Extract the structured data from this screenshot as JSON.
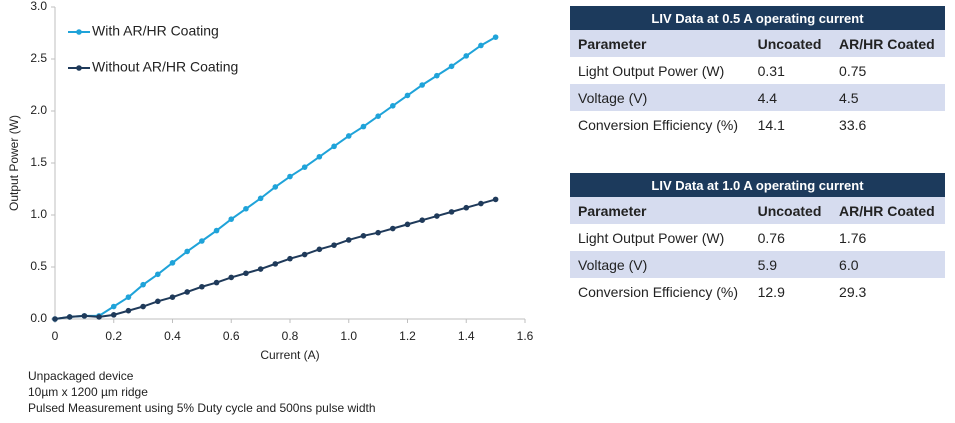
{
  "chart_data": {
    "type": "line",
    "x": [
      0,
      0.05,
      0.1,
      0.15,
      0.2,
      0.25,
      0.3,
      0.35,
      0.4,
      0.45,
      0.5,
      0.55,
      0.6,
      0.65,
      0.7,
      0.75,
      0.8,
      0.85,
      0.9,
      0.95,
      1.0,
      1.05,
      1.1,
      1.15,
      1.2,
      1.25,
      1.3,
      1.35,
      1.4,
      1.45,
      1.5
    ],
    "series": [
      {
        "name": "With AR/HR Coating",
        "color": "#1fa3d9",
        "values": [
          0,
          0.02,
          0.03,
          0.03,
          0.12,
          0.21,
          0.33,
          0.43,
          0.54,
          0.65,
          0.75,
          0.85,
          0.96,
          1.06,
          1.16,
          1.27,
          1.37,
          1.46,
          1.56,
          1.66,
          1.76,
          1.85,
          1.95,
          2.05,
          2.15,
          2.25,
          2.34,
          2.43,
          2.53,
          2.63,
          2.71
        ]
      },
      {
        "name": "Without AR/HR Coating",
        "color": "#1f3a5a",
        "values": [
          0,
          0.02,
          0.03,
          0.02,
          0.04,
          0.08,
          0.12,
          0.17,
          0.21,
          0.26,
          0.31,
          0.35,
          0.4,
          0.44,
          0.48,
          0.53,
          0.58,
          0.62,
          0.67,
          0.71,
          0.76,
          0.8,
          0.83,
          0.87,
          0.91,
          0.95,
          0.99,
          1.03,
          1.07,
          1.11,
          1.15
        ]
      }
    ],
    "x_label": "Current (A)",
    "y_label": "Output Power (W)",
    "xlim": [
      0,
      1.6
    ],
    "xticks": [
      0,
      0.2,
      0.4,
      0.6,
      0.8,
      {
        "value": 1,
        "label": "1.0"
      },
      1.2,
      1.4,
      1.6
    ],
    "ylim": [
      0,
      3
    ],
    "yticks": [
      {
        "value": 0,
        "label": "0.0"
      },
      0.5,
      {
        "value": 1,
        "label": "1.0"
      },
      1.5,
      {
        "value": 2,
        "label": "2.0"
      },
      2.5,
      {
        "value": 3,
        "label": "3.0"
      }
    ],
    "legend": "upper left"
  },
  "notes": [
    "Unpackaged device",
    "10µm x 1200 µm ridge",
    "Pulsed Measurement using 5% Duty cycle and 500ns pulse width"
  ],
  "tables": [
    {
      "title": "LIV Data at 0.5 A operating current",
      "header": [
        "Parameter",
        "Uncoated",
        "AR/HR Coated"
      ],
      "rows": [
        [
          "Light Output Power (W)",
          "0.31",
          "0.75"
        ],
        [
          "Voltage (V)",
          "4.4",
          "4.5"
        ],
        [
          "Conversion Efficiency (%)",
          "14.1",
          "33.6"
        ]
      ]
    },
    {
      "title": "LIV Data at 1.0 A operating current",
      "header": [
        "Parameter",
        "Uncoated",
        "AR/HR Coated"
      ],
      "rows": [
        [
          "Light Output Power (W)",
          "0.76",
          "1.76"
        ],
        [
          "Voltage (V)",
          "5.9",
          "6.0"
        ],
        [
          "Conversion Efficiency (%)",
          "12.9",
          "29.3"
        ]
      ]
    }
  ]
}
